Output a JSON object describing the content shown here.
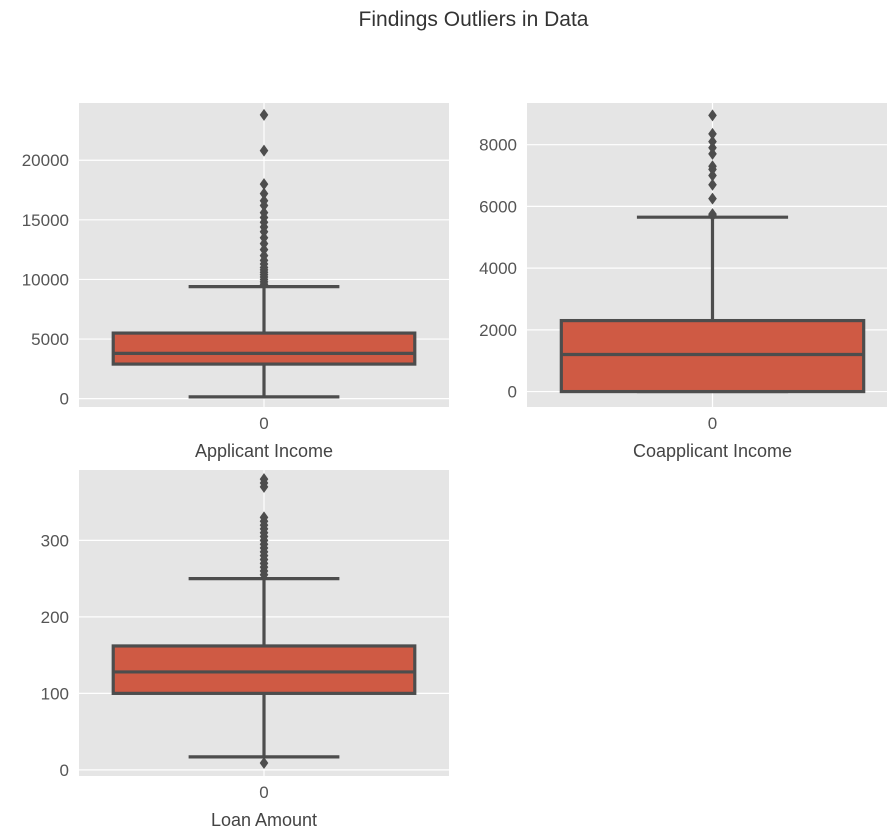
{
  "title": "Findings Outliers in Data",
  "colors": {
    "figure_bg": "#ffffff",
    "axes_bg": "#e5e5e5",
    "grid": "#ffffff",
    "box_fill": "#cf5a44",
    "line": "#4d4d4d"
  },
  "chart_data": [
    {
      "type": "box",
      "xlabel": "Applicant Income",
      "categories": [
        "0"
      ],
      "ylim": [
        -700,
        24800
      ],
      "yticks": [
        0,
        5000,
        10000,
        15000,
        20000
      ],
      "yticklabels": [
        "0",
        "5000",
        "10000",
        "15000",
        "20000"
      ],
      "grid": true,
      "box": {
        "whisker_low": 150,
        "q1": 2900,
        "median": 3800,
        "q3": 5500,
        "whisker_high": 9400
      },
      "outliers": [
        9600,
        9800,
        10000,
        10200,
        10400,
        10600,
        10800,
        11000,
        11300,
        11600,
        12000,
        12500,
        13000,
        13500,
        14000,
        14400,
        14800,
        15200,
        15600,
        16200,
        16600,
        17200,
        18000,
        20800,
        23800
      ]
    },
    {
      "type": "box",
      "xlabel": "Coapplicant Income",
      "categories": [
        "0"
      ],
      "ylim": [
        -500,
        9350
      ],
      "yticks": [
        0,
        2000,
        4000,
        6000,
        8000
      ],
      "yticklabels": [
        "0",
        "2000",
        "4000",
        "6000",
        "8000"
      ],
      "grid": true,
      "box": {
        "whisker_low": 0,
        "q1": 0,
        "median": 1200,
        "q3": 2300,
        "whisker_high": 5650
      },
      "outliers": [
        5700,
        5750,
        6250,
        6700,
        7000,
        7200,
        7300,
        7700,
        7900,
        8100,
        8350,
        8950
      ]
    },
    {
      "type": "box",
      "xlabel": "Loan Amount",
      "categories": [
        "0"
      ],
      "ylim": [
        -8,
        392
      ],
      "yticks": [
        0,
        100,
        200,
        300
      ],
      "yticklabels": [
        "0",
        "100",
        "200",
        "300"
      ],
      "grid": true,
      "box": {
        "whisker_low": 17,
        "q1": 100,
        "median": 128,
        "q3": 162,
        "whisker_high": 250
      },
      "outliers": [
        9,
        255,
        260,
        265,
        270,
        275,
        280,
        285,
        290,
        295,
        300,
        305,
        310,
        315,
        320,
        325,
        330,
        370,
        375,
        380
      ]
    }
  ]
}
